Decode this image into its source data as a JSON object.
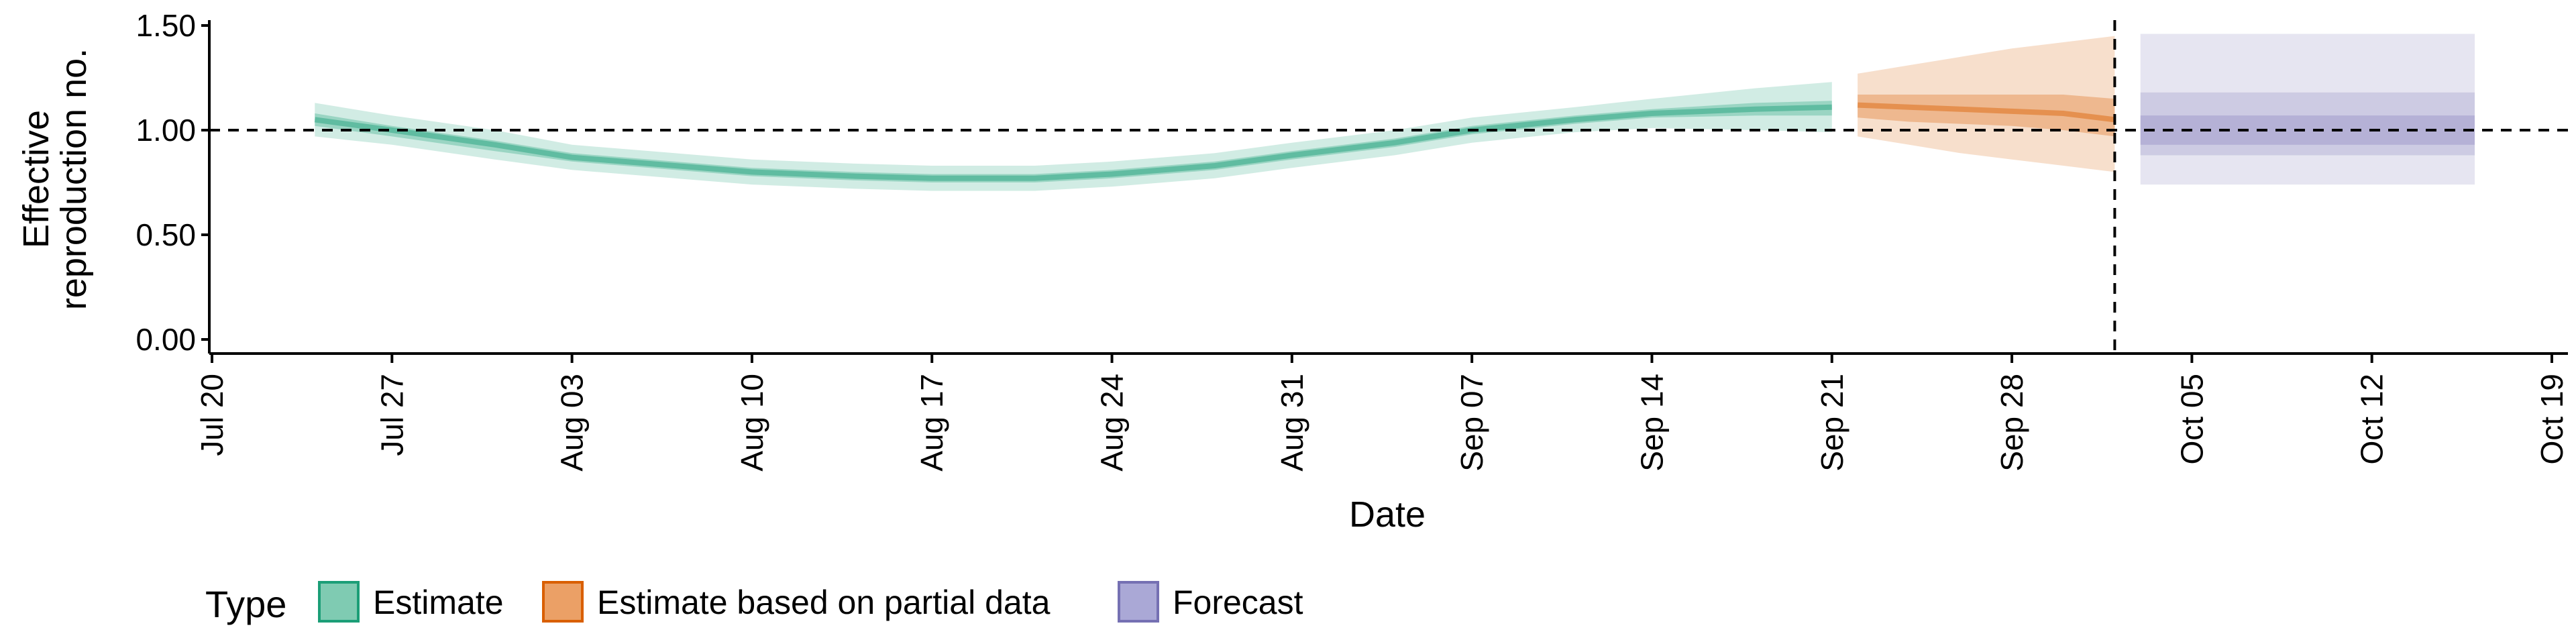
{
  "chart_data": {
    "type": "area",
    "title": "",
    "xlabel": "Date",
    "ylabel_lines": [
      "Effective",
      "reproduction no."
    ],
    "x_tick_labels": [
      "Jul 20",
      "Jul 27",
      "Aug 03",
      "Aug 10",
      "Aug 17",
      "Aug 24",
      "Aug 31",
      "Sep 07",
      "Sep 14",
      "Sep 21",
      "Sep 28",
      "Oct 05",
      "Oct 12",
      "Oct 19"
    ],
    "x_tick_dates": [
      "2020-07-20",
      "2020-07-27",
      "2020-08-03",
      "2020-08-10",
      "2020-08-17",
      "2020-08-24",
      "2020-08-31",
      "2020-09-07",
      "2020-09-14",
      "2020-09-21",
      "2020-09-28",
      "2020-10-05",
      "2020-10-12",
      "2020-10-19"
    ],
    "y_ticks": [
      0.0,
      0.5,
      1.0,
      1.5
    ],
    "y_tick_labels": [
      "0.00",
      "0.50",
      "1.00",
      "1.50"
    ],
    "ylim": [
      0.0,
      1.55
    ],
    "reference_lines": {
      "horizontal_y": 1.0,
      "vertical_date": "2020-10-02"
    },
    "legend": {
      "title": "Type",
      "placement": "bottom",
      "entries": [
        {
          "label": "Estimate",
          "fill": "#7fcbb2",
          "stroke": "#1b9e77"
        },
        {
          "label": "Estimate based on partial data",
          "fill": "#eba066",
          "stroke": "#d95f02"
        },
        {
          "label": "Forecast",
          "fill": "#aaa8d6",
          "stroke": "#7570b3"
        }
      ]
    },
    "series": [
      {
        "name": "Estimate",
        "color": "#1b9e77",
        "x": [
          "2020-07-24",
          "2020-07-27",
          "2020-07-31",
          "2020-08-03",
          "2020-08-07",
          "2020-08-10",
          "2020-08-14",
          "2020-08-17",
          "2020-08-21",
          "2020-08-24",
          "2020-08-28",
          "2020-08-31",
          "2020-09-04",
          "2020-09-07",
          "2020-09-11",
          "2020-09-14",
          "2020-09-18",
          "2020-09-21"
        ],
        "median": [
          1.05,
          1.0,
          0.93,
          0.87,
          0.83,
          0.8,
          0.78,
          0.77,
          0.77,
          0.79,
          0.83,
          0.88,
          0.94,
          1.0,
          1.05,
          1.08,
          1.1,
          1.11
        ],
        "lower50": [
          1.02,
          0.97,
          0.9,
          0.85,
          0.81,
          0.78,
          0.76,
          0.75,
          0.75,
          0.77,
          0.81,
          0.86,
          0.92,
          0.98,
          1.03,
          1.06,
          1.07,
          1.07
        ],
        "upper50": [
          1.08,
          1.02,
          0.95,
          0.89,
          0.85,
          0.82,
          0.8,
          0.79,
          0.79,
          0.81,
          0.85,
          0.9,
          0.96,
          1.02,
          1.07,
          1.1,
          1.13,
          1.14
        ],
        "lower90": [
          0.97,
          0.93,
          0.86,
          0.81,
          0.77,
          0.74,
          0.72,
          0.71,
          0.71,
          0.73,
          0.77,
          0.82,
          0.88,
          0.94,
          0.99,
          1.01,
          1.0,
          0.99
        ],
        "upper90": [
          1.13,
          1.07,
          1.0,
          0.93,
          0.89,
          0.86,
          0.84,
          0.83,
          0.83,
          0.85,
          0.89,
          0.94,
          1.0,
          1.06,
          1.11,
          1.15,
          1.2,
          1.23
        ]
      },
      {
        "name": "Estimate based on partial data",
        "color": "#d95f02",
        "x": [
          "2020-09-22",
          "2020-09-24",
          "2020-09-26",
          "2020-09-28",
          "2020-09-30",
          "2020-10-02"
        ],
        "median": [
          1.12,
          1.11,
          1.1,
          1.09,
          1.08,
          1.05
        ],
        "lower50": [
          1.06,
          1.04,
          1.03,
          1.02,
          1.0,
          0.97
        ],
        "upper50": [
          1.17,
          1.17,
          1.17,
          1.17,
          1.17,
          1.15
        ],
        "lower90": [
          0.97,
          0.93,
          0.89,
          0.86,
          0.83,
          0.8
        ],
        "upper90": [
          1.27,
          1.31,
          1.35,
          1.39,
          1.42,
          1.45
        ]
      },
      {
        "name": "Forecast",
        "color": "#7570b3",
        "x": [
          "2020-10-03",
          "2020-10-16"
        ],
        "median": [
          1.0,
          1.0
        ],
        "lower50": [
          0.93,
          0.93
        ],
        "upper50": [
          1.07,
          1.07
        ],
        "lower90": [
          0.74,
          0.74
        ],
        "upper90": [
          1.46,
          1.46
        ],
        "lower_mid": [
          0.88,
          0.88
        ],
        "upper_mid": [
          1.18,
          1.18
        ]
      }
    ]
  }
}
